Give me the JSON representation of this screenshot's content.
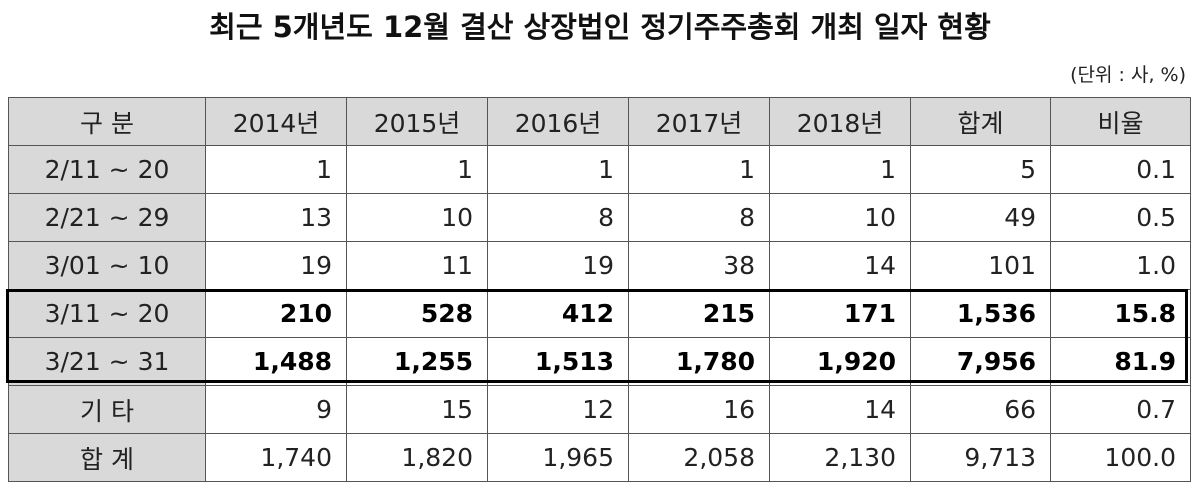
{
  "title": "최근 5개년도 12월 결산 상장법인 정기주주총회 개최 일자 현황",
  "unit": "(단위 : 사, %)",
  "table": {
    "headers": [
      "구 분",
      "2014년",
      "2015년",
      "2016년",
      "2017년",
      "2018년",
      "합계",
      "비율"
    ],
    "rows": [
      {
        "label": "2/11 ~ 20",
        "values": [
          "1",
          "1",
          "1",
          "1",
          "1",
          "5",
          "0.1"
        ],
        "highlight": false
      },
      {
        "label": "2/21 ~ 29",
        "values": [
          "13",
          "10",
          "8",
          "8",
          "10",
          "49",
          "0.5"
        ],
        "highlight": false
      },
      {
        "label": "3/01 ~ 10",
        "values": [
          "19",
          "11",
          "19",
          "38",
          "14",
          "101",
          "1.0"
        ],
        "highlight": false
      },
      {
        "label": "3/11 ~ 20",
        "values": [
          "210",
          "528",
          "412",
          "215",
          "171",
          "1,536",
          "15.8"
        ],
        "highlight": true
      },
      {
        "label": "3/21 ~ 31",
        "values": [
          "1,488",
          "1,255",
          "1,513",
          "1,780",
          "1,920",
          "7,956",
          "81.9"
        ],
        "highlight": true
      },
      {
        "label": "기 타",
        "values": [
          "9",
          "15",
          "12",
          "16",
          "14",
          "66",
          "0.7"
        ],
        "highlight": false
      },
      {
        "label": "합 계",
        "values": [
          "1,740",
          "1,820",
          "1,965",
          "2,058",
          "2,130",
          "9,713",
          "100.0"
        ],
        "highlight": false
      }
    ]
  }
}
